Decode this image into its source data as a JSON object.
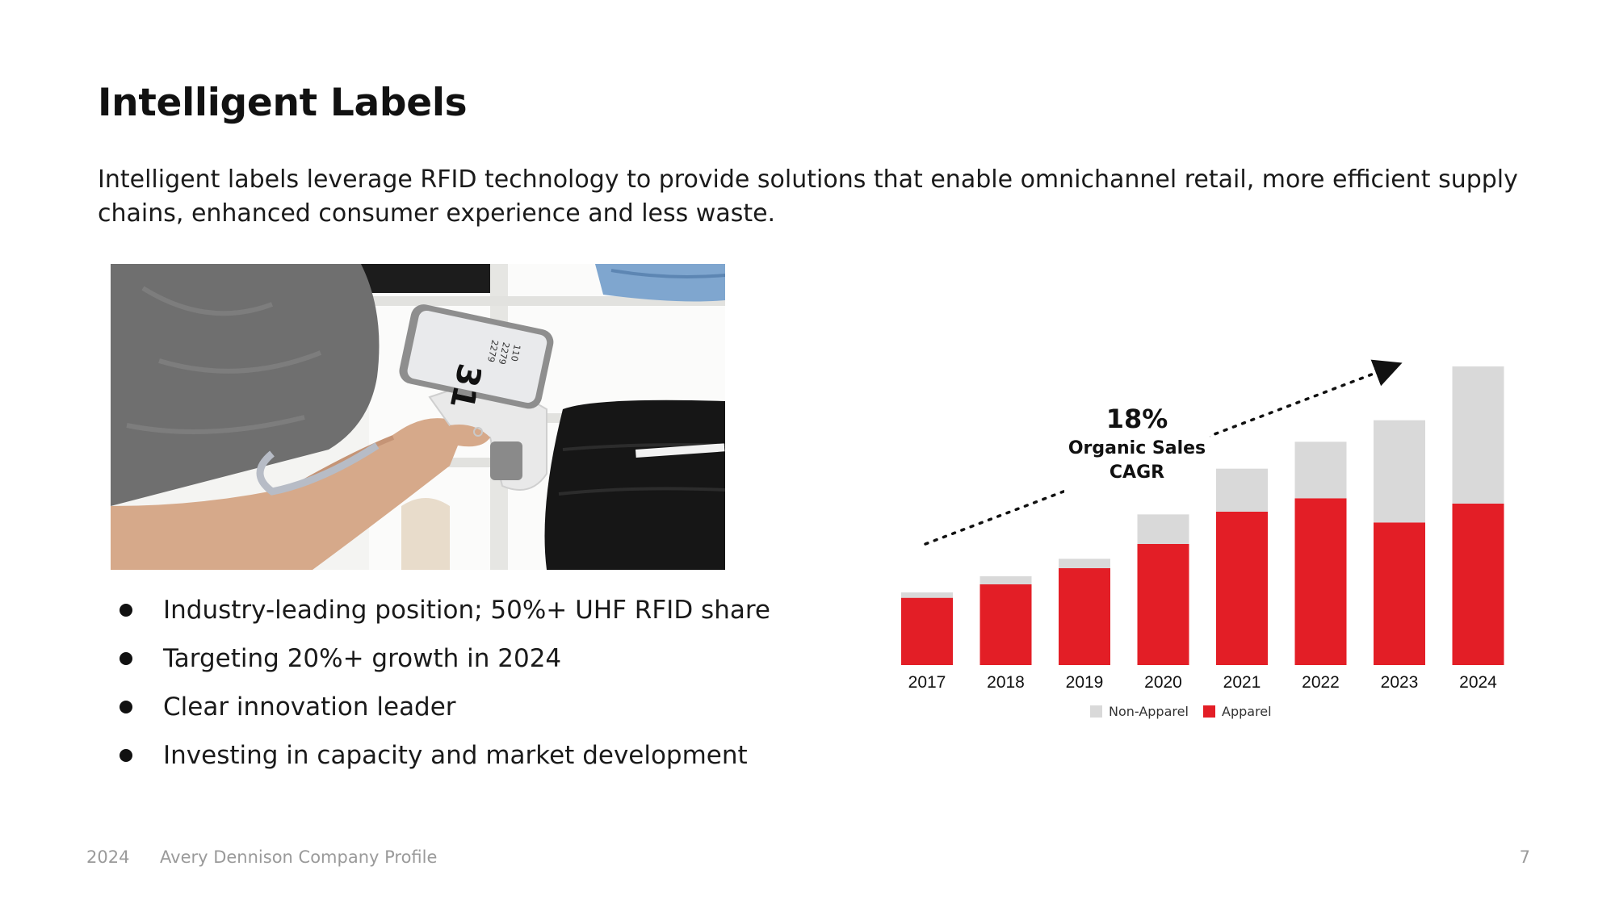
{
  "slide": {
    "title": "Intelligent Labels",
    "intro": "Intelligent labels leverage RFID technology to provide solutions that enable omnichannel retail, more efficient supply chains, enhanced consumer experience and less waste.",
    "bullets": [
      "Industry-leading position; 50%+ UHF RFID share",
      "Targeting 20%+ growth in 2024",
      "Clear innovation leader",
      "Investing in capacity and market development"
    ],
    "photo": {
      "scanner_count": "31",
      "scanner_lines": [
        "2279",
        "2279",
        "110"
      ]
    }
  },
  "footer": {
    "year": "2024",
    "company": "Avery Dennison Company Profile",
    "page": "7"
  },
  "chart_data": {
    "type": "bar",
    "stacked": true,
    "categories": [
      "2017",
      "2018",
      "2019",
      "2020",
      "2021",
      "2022",
      "2023",
      "2024"
    ],
    "series": [
      {
        "name": "Apparel",
        "color": "#e31e26",
        "values": [
          25,
          30,
          36,
          45,
          57,
          62,
          53,
          60
        ]
      },
      {
        "name": "Non-Apparel",
        "color": "#d9d9d9",
        "values": [
          2,
          3,
          3.5,
          11,
          16,
          21,
          38,
          51
        ]
      }
    ],
    "legend": {
      "position": "bottom",
      "order": [
        "Non-Apparel",
        "Apparel"
      ]
    },
    "annotation": {
      "value": "18%",
      "text_line1": "Organic Sales",
      "text_line2": "CAGR"
    },
    "ylim": [
      0,
      120
    ],
    "grid": false,
    "colors": {
      "text": "#111111",
      "arrow": "#111111"
    }
  }
}
